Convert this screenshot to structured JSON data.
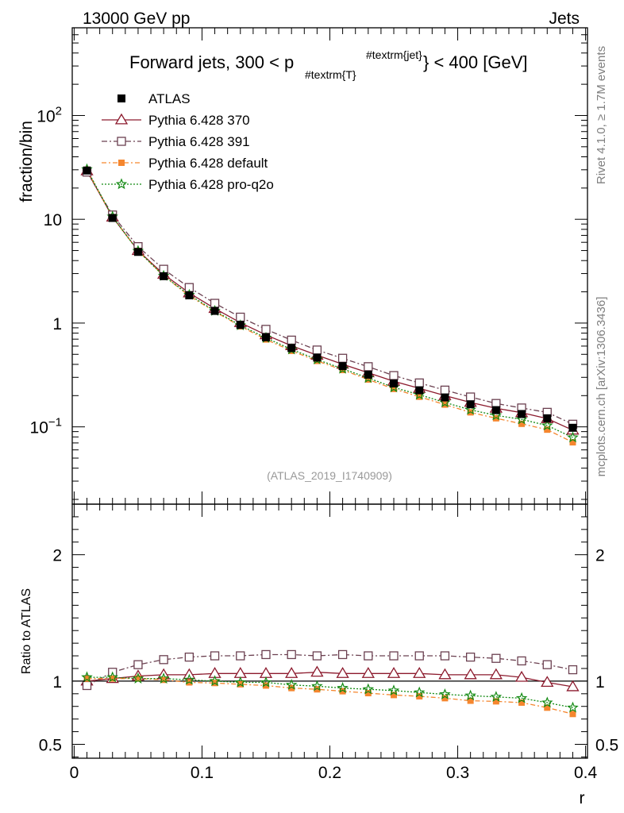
{
  "header": {
    "left": "13000 GeV pp",
    "right": "Jets",
    "side_top": "Rivet 4.1.0, ≥ 1.7M events",
    "side_bottom": "mcplots.cern.ch [arXiv:1306.3436]",
    "watermark": "(ATLAS_2019_I1740909)"
  },
  "chart_data": [
    {
      "type": "line",
      "panel": "main",
      "title_main": "Forward jets, 300 < p",
      "title_sub": "#textrm{T}",
      "title_sup": "#textrm{jet}",
      "title_end": "} < 400 [GeV]",
      "ylabel": "fraction/bin",
      "yscale": "log",
      "ylim": [
        0.018,
        700
      ],
      "xlim": [
        -0.0015,
        0.4015
      ],
      "ytick_labels": [
        "10−1",
        "1",
        "10",
        "102"
      ],
      "legend_position": "top-left",
      "x": [
        0.01,
        0.03,
        0.05,
        0.07,
        0.09,
        0.11,
        0.13,
        0.15,
        0.17,
        0.19,
        0.21,
        0.23,
        0.25,
        0.27,
        0.29,
        0.31,
        0.33,
        0.35,
        0.37,
        0.39
      ],
      "series": [
        {
          "name": "ATLAS",
          "values": [
            29.5,
            10.3,
            4.85,
            2.83,
            1.85,
            1.31,
            0.96,
            0.73,
            0.575,
            0.465,
            0.385,
            0.318,
            0.262,
            0.225,
            0.192,
            0.165,
            0.145,
            0.133,
            0.121,
            0.098
          ]
        },
        {
          "name": "Pythia 6.428 370",
          "values": [
            29.3,
            10.5,
            5.0,
            2.95,
            1.95,
            1.38,
            1.01,
            0.77,
            0.605,
            0.49,
            0.402,
            0.332,
            0.275,
            0.235,
            0.2,
            0.172,
            0.151,
            0.137,
            0.12,
            0.093
          ]
        },
        {
          "name": "Pythia 6.428 391",
          "values": [
            28.5,
            11.0,
            5.45,
            3.3,
            2.2,
            1.55,
            1.14,
            0.87,
            0.685,
            0.55,
            0.458,
            0.38,
            0.312,
            0.265,
            0.226,
            0.194,
            0.168,
            0.152,
            0.138,
            0.106
          ]
        },
        {
          "name": "Pythia 6.428 default",
          "values": [
            30.0,
            10.5,
            4.95,
            2.85,
            1.83,
            1.29,
            0.93,
            0.695,
            0.54,
            0.432,
            0.353,
            0.286,
            0.232,
            0.195,
            0.164,
            0.138,
            0.121,
            0.107,
            0.094,
            0.071
          ]
        },
        {
          "name": "Pythia 6.428 pro-q2o",
          "values": [
            30.3,
            10.6,
            4.95,
            2.85,
            1.87,
            1.31,
            0.95,
            0.72,
            0.557,
            0.446,
            0.363,
            0.296,
            0.24,
            0.204,
            0.172,
            0.146,
            0.129,
            0.118,
            0.103,
            0.079
          ]
        }
      ]
    },
    {
      "type": "line",
      "panel": "ratio",
      "ylabel": "Ratio to ATLAS",
      "xlabel": "r",
      "ylim": [
        0.39,
        2.4
      ],
      "xlim": [
        -0.0015,
        0.4015
      ],
      "yticks": [
        0.5,
        1,
        2
      ],
      "ytick_labels": [
        "0.5",
        "1",
        "2"
      ],
      "xticks": [
        0,
        0.1,
        0.2,
        0.3,
        0.4
      ],
      "xtick_labels": [
        "0",
        "0.1",
        "0.2",
        "0.3",
        "0.4"
      ],
      "reference_line": 1,
      "x": [
        0.01,
        0.03,
        0.05,
        0.07,
        0.09,
        0.11,
        0.13,
        0.15,
        0.17,
        0.19,
        0.21,
        0.23,
        0.25,
        0.27,
        0.29,
        0.31,
        0.33,
        0.35,
        0.37,
        0.39
      ],
      "series": [
        {
          "name": "Pythia 6.428 370",
          "values": [
            1.0,
            1.02,
            1.04,
            1.05,
            1.05,
            1.06,
            1.06,
            1.06,
            1.06,
            1.07,
            1.06,
            1.06,
            1.06,
            1.06,
            1.05,
            1.05,
            1.05,
            1.03,
            0.99,
            0.955
          ]
        },
        {
          "name": "Pythia 6.428 391",
          "values": [
            0.965,
            1.07,
            1.13,
            1.17,
            1.19,
            1.2,
            1.2,
            1.21,
            1.21,
            1.2,
            1.21,
            1.2,
            1.2,
            1.2,
            1.2,
            1.19,
            1.18,
            1.16,
            1.13,
            1.09
          ]
        },
        {
          "name": "Pythia 6.428 default",
          "values": [
            1.02,
            1.02,
            1.02,
            1.01,
            0.99,
            0.985,
            0.975,
            0.965,
            0.945,
            0.935,
            0.92,
            0.905,
            0.89,
            0.88,
            0.865,
            0.845,
            0.84,
            0.83,
            0.79,
            0.74
          ]
        },
        {
          "name": "Pythia 6.428 pro-q2o",
          "values": [
            1.03,
            1.03,
            1.02,
            1.02,
            1.01,
            1.0,
            0.99,
            0.99,
            0.97,
            0.96,
            0.945,
            0.935,
            0.925,
            0.91,
            0.895,
            0.885,
            0.875,
            0.865,
            0.83,
            0.79
          ]
        }
      ]
    }
  ],
  "colors": {
    "ATLAS": "#000000",
    "Pythia 6.428 370": "#8c1a2d",
    "Pythia 6.428 391": "#6b4050",
    "Pythia 6.428 default": "#f5862e",
    "Pythia 6.428 pro-q2o": "#138a13",
    "axis": "#000000",
    "side_text": "#7f7f7f"
  }
}
